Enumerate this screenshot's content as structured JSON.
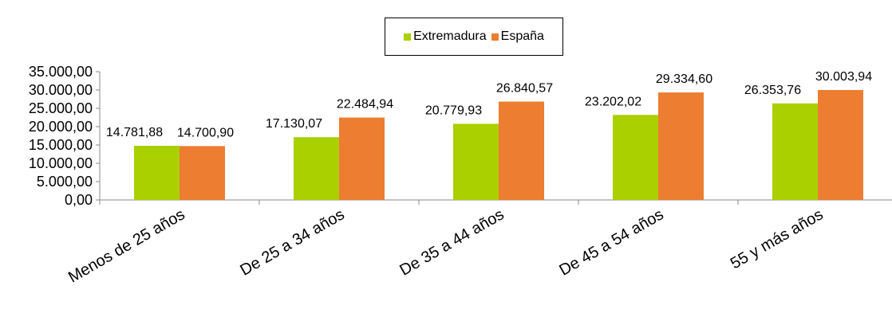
{
  "chart_data": {
    "type": "bar",
    "categories": [
      "Menos de 25 años",
      "De 25 a 34 años",
      "De 35 a 44 años",
      "De 45 a 54 años",
      "55 y más años"
    ],
    "series": [
      {
        "name": "Extremadura",
        "color": "#aad000",
        "values": [
          14781.88,
          17130.07,
          20779.93,
          23202.02,
          26353.76
        ],
        "labels": [
          "14.781,88",
          "17.130,07",
          "20.779,93",
          "23.202,02",
          "26.353,76"
        ]
      },
      {
        "name": "España",
        "color": "#ed7d31",
        "values": [
          14700.9,
          22484.94,
          26840.57,
          29334.6,
          30003.94
        ],
        "labels": [
          "14.700,90",
          "22.484,94",
          "26.840,57",
          "29.334,60",
          "30.003,94"
        ]
      }
    ],
    "ylim": [
      0,
      35000
    ],
    "yticks": [
      "0,00",
      "5.000,00",
      "10.000,00",
      "15.000,00",
      "20.000,00",
      "25.000,00",
      "30.000,00",
      "35.000,00"
    ],
    "ytick_values": [
      0,
      5000,
      10000,
      15000,
      20000,
      25000,
      30000,
      35000
    ],
    "title": "",
    "xlabel": "",
    "ylabel": "",
    "grid": false,
    "legend": "top-center"
  }
}
